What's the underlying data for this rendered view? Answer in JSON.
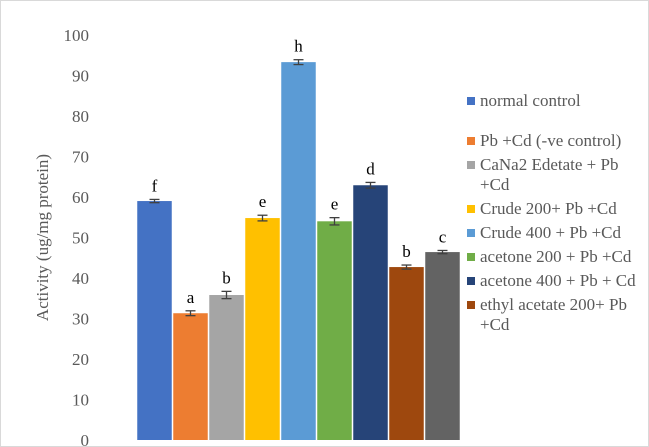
{
  "chart_data": {
    "type": "bar",
    "title": "",
    "xlabel": "",
    "ylabel": "Activity (ug/mg protein)",
    "ylim": [
      0,
      100
    ],
    "yticks": [
      "0",
      "10",
      "20",
      "30",
      "40",
      "50",
      "60",
      "70",
      "80",
      "90",
      "100"
    ],
    "grid": false,
    "legend_position": "right",
    "series": [
      {
        "name": "normal control",
        "value": 59.0,
        "error": 0.4,
        "label": "f",
        "color": "#4472C4"
      },
      {
        "name": "Pb +Cd (-ve control)",
        "value": 31.3,
        "error": 0.6,
        "label": "a",
        "color": "#ED7D31"
      },
      {
        "name": "CaNa2 Edetate + Pb +Cd",
        "value": 35.8,
        "error": 0.9,
        "label": "b",
        "color": "#A5A5A5"
      },
      {
        "name": "Crude 200+ Pb +Cd",
        "value": 54.8,
        "error": 0.7,
        "label": "e",
        "color": "#FFC000"
      },
      {
        "name": "Crude 400 + Pb +Cd",
        "value": 93.3,
        "error": 0.6,
        "label": "h",
        "color": "#5B9BD5"
      },
      {
        "name": "acetone 200 + Pb +Cd",
        "value": 54.0,
        "error": 0.9,
        "label": "e",
        "color": "#70AD47"
      },
      {
        "name": "acetone 400 + Pb + Cd",
        "value": 62.9,
        "error": 0.7,
        "label": "d",
        "color": "#264478"
      },
      {
        "name": "ethyl acetate 200+ Pb +Cd",
        "value": 42.7,
        "error": 0.5,
        "label": "b",
        "color": "#9E480E"
      },
      {
        "value": 46.4,
        "error": 0.4,
        "label": "c",
        "color": "#636363"
      }
    ]
  }
}
